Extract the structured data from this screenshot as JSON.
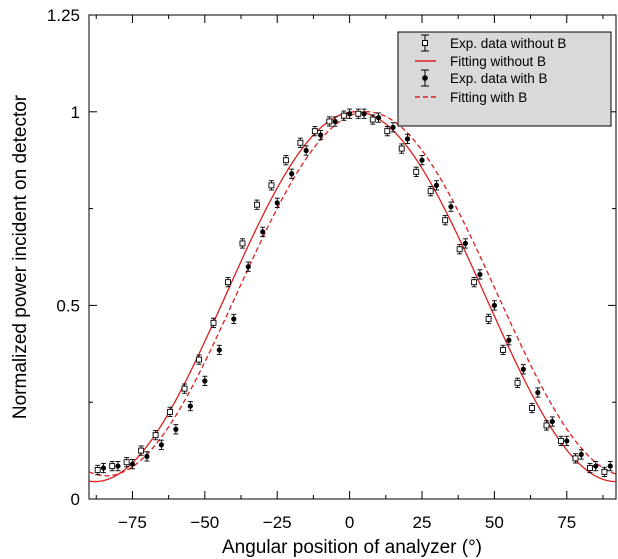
{
  "chart_data": {
    "type": "scatter",
    "title": "",
    "xlabel": "Angular position of analyzer (°)",
    "ylabel": "Normalized power incident on detector",
    "xlim": [
      -90,
      92
    ],
    "ylim": [
      0,
      1.25
    ],
    "xticks": [
      -75,
      -50,
      -25,
      0,
      25,
      50,
      75
    ],
    "xtick_labels": [
      "−75",
      "−50",
      "−25",
      "0",
      "25",
      "50",
      "75"
    ],
    "yticks": [
      0,
      0.5,
      1,
      1.25
    ],
    "ytick_labels": [
      "0",
      "0.5",
      "1",
      "1.25"
    ],
    "grid": false,
    "legend_position": "top-right",
    "colors": {
      "fit": "#dd1f1f",
      "markers": "#000000",
      "legend_bg": "#d9d9d9"
    },
    "series": [
      {
        "name": "Exp. data without B",
        "kind": "points",
        "marker": "open-square",
        "x": [
          -87,
          -82,
          -77,
          -72,
          -67,
          -62,
          -57,
          -52,
          -47,
          -42,
          -37,
          -32,
          -27,
          -22,
          -17,
          -12,
          -7,
          -2,
          3,
          8,
          13,
          18,
          23,
          28,
          33,
          38,
          43,
          48,
          53,
          58,
          63,
          68,
          73,
          78,
          83,
          88
        ],
        "y": [
          0.075,
          0.085,
          0.095,
          0.125,
          0.165,
          0.225,
          0.285,
          0.36,
          0.455,
          0.56,
          0.66,
          0.76,
          0.81,
          0.875,
          0.92,
          0.95,
          0.975,
          0.99,
          0.995,
          0.98,
          0.95,
          0.905,
          0.845,
          0.795,
          0.72,
          0.645,
          0.56,
          0.465,
          0.385,
          0.3,
          0.235,
          0.19,
          0.15,
          0.105,
          0.08,
          0.07
        ],
        "yerr": 0.012
      },
      {
        "name": "Fitting without B",
        "kind": "line",
        "style": "solid",
        "amplitude": 0.955,
        "offset": 0.045,
        "center": 2
      },
      {
        "name": "Exp. data with B",
        "kind": "points",
        "marker": "filled-circle",
        "x": [
          -85,
          -80,
          -75,
          -70,
          -65,
          -60,
          -55,
          -50,
          -45,
          -40,
          -35,
          -30,
          -25,
          -20,
          -15,
          -10,
          -5,
          0,
          5,
          10,
          15,
          20,
          25,
          30,
          35,
          40,
          45,
          50,
          55,
          60,
          65,
          70,
          75,
          80,
          85,
          90
        ],
        "y": [
          0.08,
          0.085,
          0.09,
          0.11,
          0.14,
          0.18,
          0.24,
          0.305,
          0.385,
          0.465,
          0.6,
          0.69,
          0.765,
          0.84,
          0.9,
          0.94,
          0.975,
          0.995,
          0.995,
          0.985,
          0.96,
          0.93,
          0.875,
          0.81,
          0.755,
          0.66,
          0.58,
          0.5,
          0.41,
          0.335,
          0.275,
          0.2,
          0.15,
          0.115,
          0.085,
          0.085
        ],
        "yerr": 0.012
      },
      {
        "name": "Fitting with B",
        "kind": "line",
        "style": "dashed",
        "amplitude": 0.94,
        "offset": 0.06,
        "center": 6
      }
    ]
  }
}
